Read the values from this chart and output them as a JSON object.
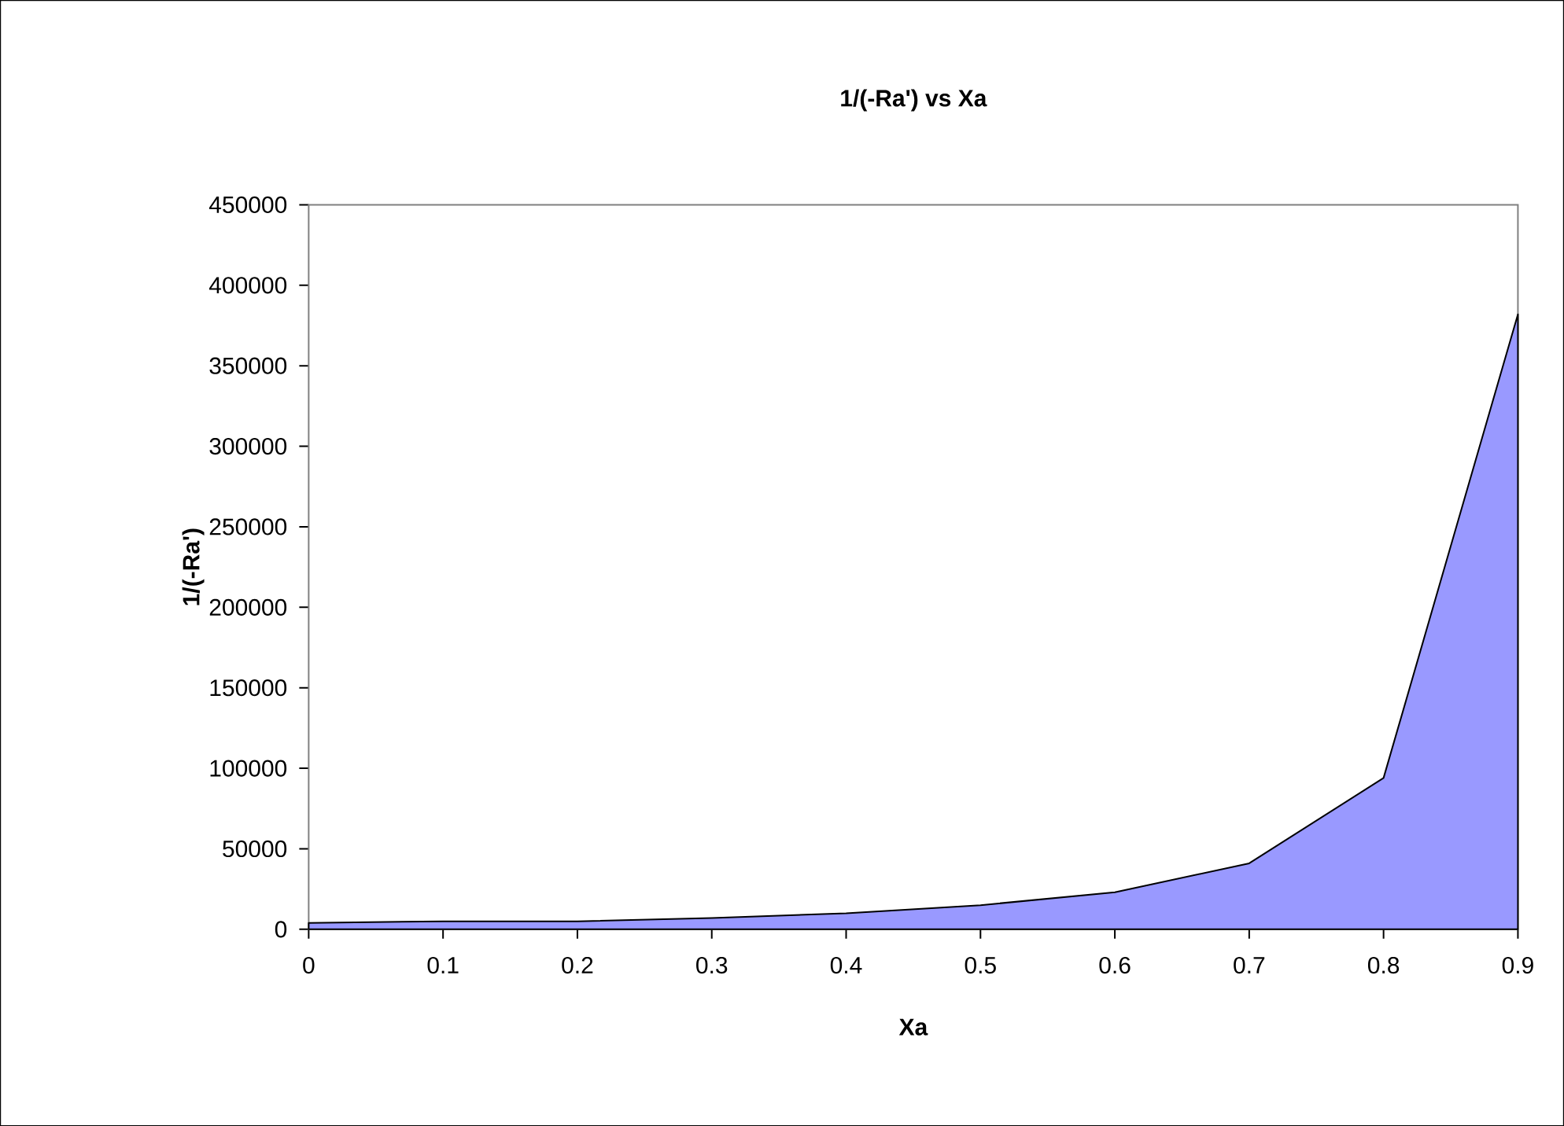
{
  "chart_data": {
    "type": "area",
    "title": "1/(-Ra') vs Xa",
    "xlabel": "Xa",
    "ylabel": "1/(-Ra')",
    "x": [
      0,
      0.1,
      0.2,
      0.3,
      0.4,
      0.5,
      0.6,
      0.7,
      0.8,
      0.9
    ],
    "values": [
      4000,
      5000,
      5000,
      7000,
      10000,
      15000,
      23000,
      41000,
      94000,
      382000
    ],
    "color": "#9999ff",
    "xlim": [
      0,
      0.9
    ],
    "xticks": [
      0,
      0.1,
      0.2,
      0.3,
      0.4,
      0.5,
      0.6,
      0.7,
      0.8,
      0.9
    ],
    "ylim": [
      0,
      450000
    ],
    "yticks": [
      0,
      50000,
      100000,
      150000,
      200000,
      250000,
      300000,
      350000,
      400000,
      450000
    ],
    "grid": false
  }
}
